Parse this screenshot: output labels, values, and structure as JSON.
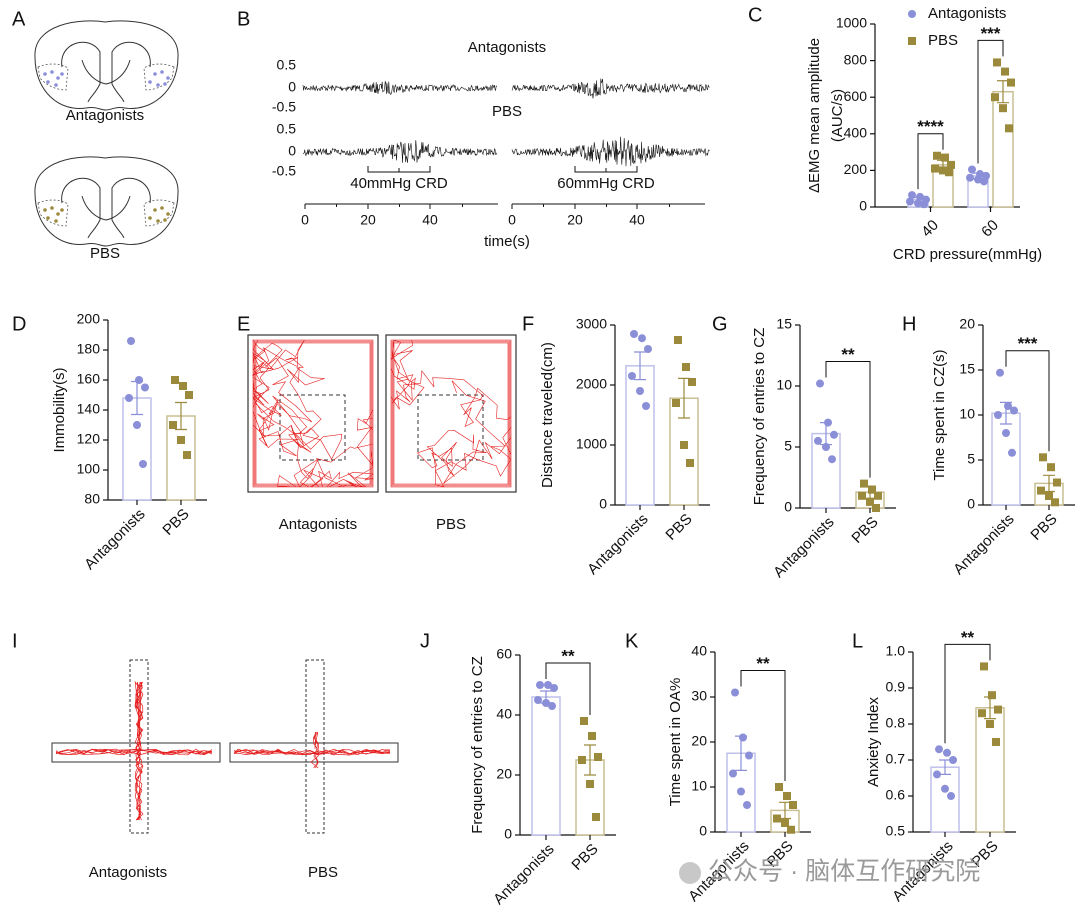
{
  "panel_letters": [
    "A",
    "B",
    "C",
    "D",
    "E",
    "F",
    "G",
    "H",
    "I",
    "J",
    "K",
    "L"
  ],
  "diagram_a": {
    "labels": [
      "Antagonists",
      "PBS"
    ]
  },
  "diagram_b": {
    "row_labels": [
      "Antagonists",
      "PBS"
    ],
    "y_tick_labels": [
      "0.5",
      "0",
      "-0.5"
    ],
    "stimuli": [
      "40mmHg CRD",
      "60mmHg CRD"
    ],
    "time_tick_labels": [
      "0",
      "20",
      "40"
    ],
    "xlabel": "time(s)"
  },
  "diagram_e": {
    "labels": [
      "Antagonists",
      "PBS"
    ]
  },
  "diagram_i": {
    "labels": [
      "Antagonists",
      "PBS"
    ]
  },
  "chart_data": [
    {
      "type": "bar",
      "ylabel": [
        "ΔEMG mean amplitude",
        "(AUC/s)"
      ],
      "xlabel": "CRD pressure(mmHg)",
      "categories": [
        "40",
        "60"
      ],
      "legend": "top",
      "series": [
        {
          "name": "Antagonists",
          "color": "#8a8fd8",
          "marker": "circle",
          "values": [
            40,
            170
          ],
          "errors": [
            12,
            15
          ],
          "points": [
            [
              65,
              55,
              40,
              30,
              20,
              15
            ],
            [
              205,
              180,
              170,
              160,
              150,
              140
            ]
          ]
        },
        {
          "name": "PBS",
          "color": "#9c8a3c",
          "marker": "square",
          "values": [
            230,
            630
          ],
          "errors": [
            25,
            60
          ],
          "points": [
            [
              280,
              270,
              230,
              210,
              200,
              190
            ],
            [
              790,
              740,
              680,
              600,
              540,
              430
            ]
          ]
        }
      ],
      "significance": [
        "****",
        "***"
      ],
      "ylim": [
        0,
        1000
      ],
      "yticks": [
        0,
        200,
        400,
        600,
        800,
        1000
      ]
    },
    {
      "type": "bar",
      "ylabel": "Immobility(s)",
      "categories": [
        "Antagonists",
        "PBS"
      ],
      "colors": [
        "#8a8fd8",
        "#9c8a3c"
      ],
      "markers": [
        "circle",
        "square"
      ],
      "values": [
        148,
        136
      ],
      "errors": [
        11,
        9
      ],
      "points": [
        [
          186,
          160,
          155,
          148,
          130,
          104
        ],
        [
          160,
          156,
          150,
          130,
          120,
          110
        ]
      ],
      "ylim": [
        80,
        200
      ],
      "yticks": [
        80,
        100,
        120,
        140,
        160,
        180,
        200
      ]
    },
    {
      "type": "bar",
      "ylabel": "Distance traveled(cm)",
      "categories": [
        "Antagonists",
        "PBS"
      ],
      "colors": [
        "#8a8fd8",
        "#9c8a3c"
      ],
      "markers": [
        "circle",
        "square"
      ],
      "values": [
        2320,
        1780
      ],
      "errors": [
        230,
        330
      ],
      "points": [
        [
          2850,
          2780,
          2600,
          2150,
          1900,
          1650
        ],
        [
          2750,
          2300,
          2050,
          1700,
          1000,
          700
        ]
      ],
      "ylim": [
        0,
        3000
      ],
      "yticks": [
        0,
        1000,
        2000,
        3000
      ]
    },
    {
      "type": "bar",
      "ylabel": "Frequency of entries to CZ",
      "categories": [
        "Antagonists",
        "PBS"
      ],
      "colors": [
        "#8a8fd8",
        "#9c8a3c"
      ],
      "markers": [
        "circle",
        "square"
      ],
      "values": [
        6.1,
        1.3
      ],
      "errors": [
        0.9,
        0.5
      ],
      "points": [
        [
          10.2,
          7,
          6,
          5.5,
          5,
          4
        ],
        [
          2,
          1.5,
          1,
          1,
          0.5,
          0
        ]
      ],
      "significance": "**",
      "ylim": [
        0,
        15
      ],
      "yticks": [
        0,
        5,
        10,
        15
      ]
    },
    {
      "type": "bar",
      "ylabel": "Time spent in CZ(s)",
      "categories": [
        "Antagonists",
        "PBS"
      ],
      "colors": [
        "#8a8fd8",
        "#9c8a3c"
      ],
      "markers": [
        "circle",
        "square"
      ],
      "values": [
        10.2,
        2.4
      ],
      "errors": [
        1.2,
        0.9
      ],
      "points": [
        [
          14.7,
          11,
          10.5,
          10,
          8,
          5.8
        ],
        [
          5.3,
          4.2,
          2.5,
          1.6,
          1,
          0.3
        ]
      ],
      "significance": "***",
      "ylim": [
        0,
        20
      ],
      "yticks": [
        0,
        5,
        10,
        15,
        20
      ]
    },
    {
      "type": "bar",
      "ylabel": "Frequency of entries to CZ",
      "categories": [
        "Antagonists",
        "PBS"
      ],
      "colors": [
        "#8a8fd8",
        "#9c8a3c"
      ],
      "markers": [
        "circle",
        "square"
      ],
      "values": [
        46,
        25
      ],
      "errors": [
        2,
        5
      ],
      "points": [
        [
          50,
          50,
          49,
          45,
          44,
          43
        ],
        [
          38,
          33,
          26,
          25,
          17,
          6
        ]
      ],
      "significance": "**",
      "ylim": [
        0,
        60
      ],
      "yticks": [
        0,
        20,
        40,
        60
      ]
    },
    {
      "type": "bar",
      "ylabel": "Time spent in OA%",
      "categories": [
        "Antagonists",
        "PBS"
      ],
      "colors": [
        "#8a8fd8",
        "#9c8a3c"
      ],
      "markers": [
        "circle",
        "square"
      ],
      "values": [
        17.5,
        4.8
      ],
      "errors": [
        3.8,
        1.8
      ],
      "points": [
        [
          31,
          21,
          17,
          13,
          9,
          6
        ],
        [
          10,
          8,
          6,
          3,
          2,
          0.5
        ]
      ],
      "significance": "**",
      "ylim": [
        0,
        40
      ],
      "yticks": [
        0,
        10,
        20,
        30,
        40
      ]
    },
    {
      "type": "bar",
      "ylabel": "Anxiety Index",
      "categories": [
        "Antagonists",
        "PBS"
      ],
      "colors": [
        "#8a8fd8",
        "#9c8a3c"
      ],
      "markers": [
        "circle",
        "square"
      ],
      "values": [
        0.68,
        0.845
      ],
      "errors": [
        0.02,
        0.03
      ],
      "points": [
        [
          0.73,
          0.72,
          0.7,
          0.66,
          0.62,
          0.6
        ],
        [
          0.96,
          0.88,
          0.84,
          0.83,
          0.8,
          0.75
        ]
      ],
      "significance": "**",
      "ylim": [
        0.5,
        1
      ],
      "yticks": [
        0.5,
        0.6,
        0.7,
        0.8,
        0.9,
        {
          "value": 1,
          "label": "1.0"
        }
      ]
    }
  ],
  "watermark": "公众号 · 脑体互作研究院"
}
